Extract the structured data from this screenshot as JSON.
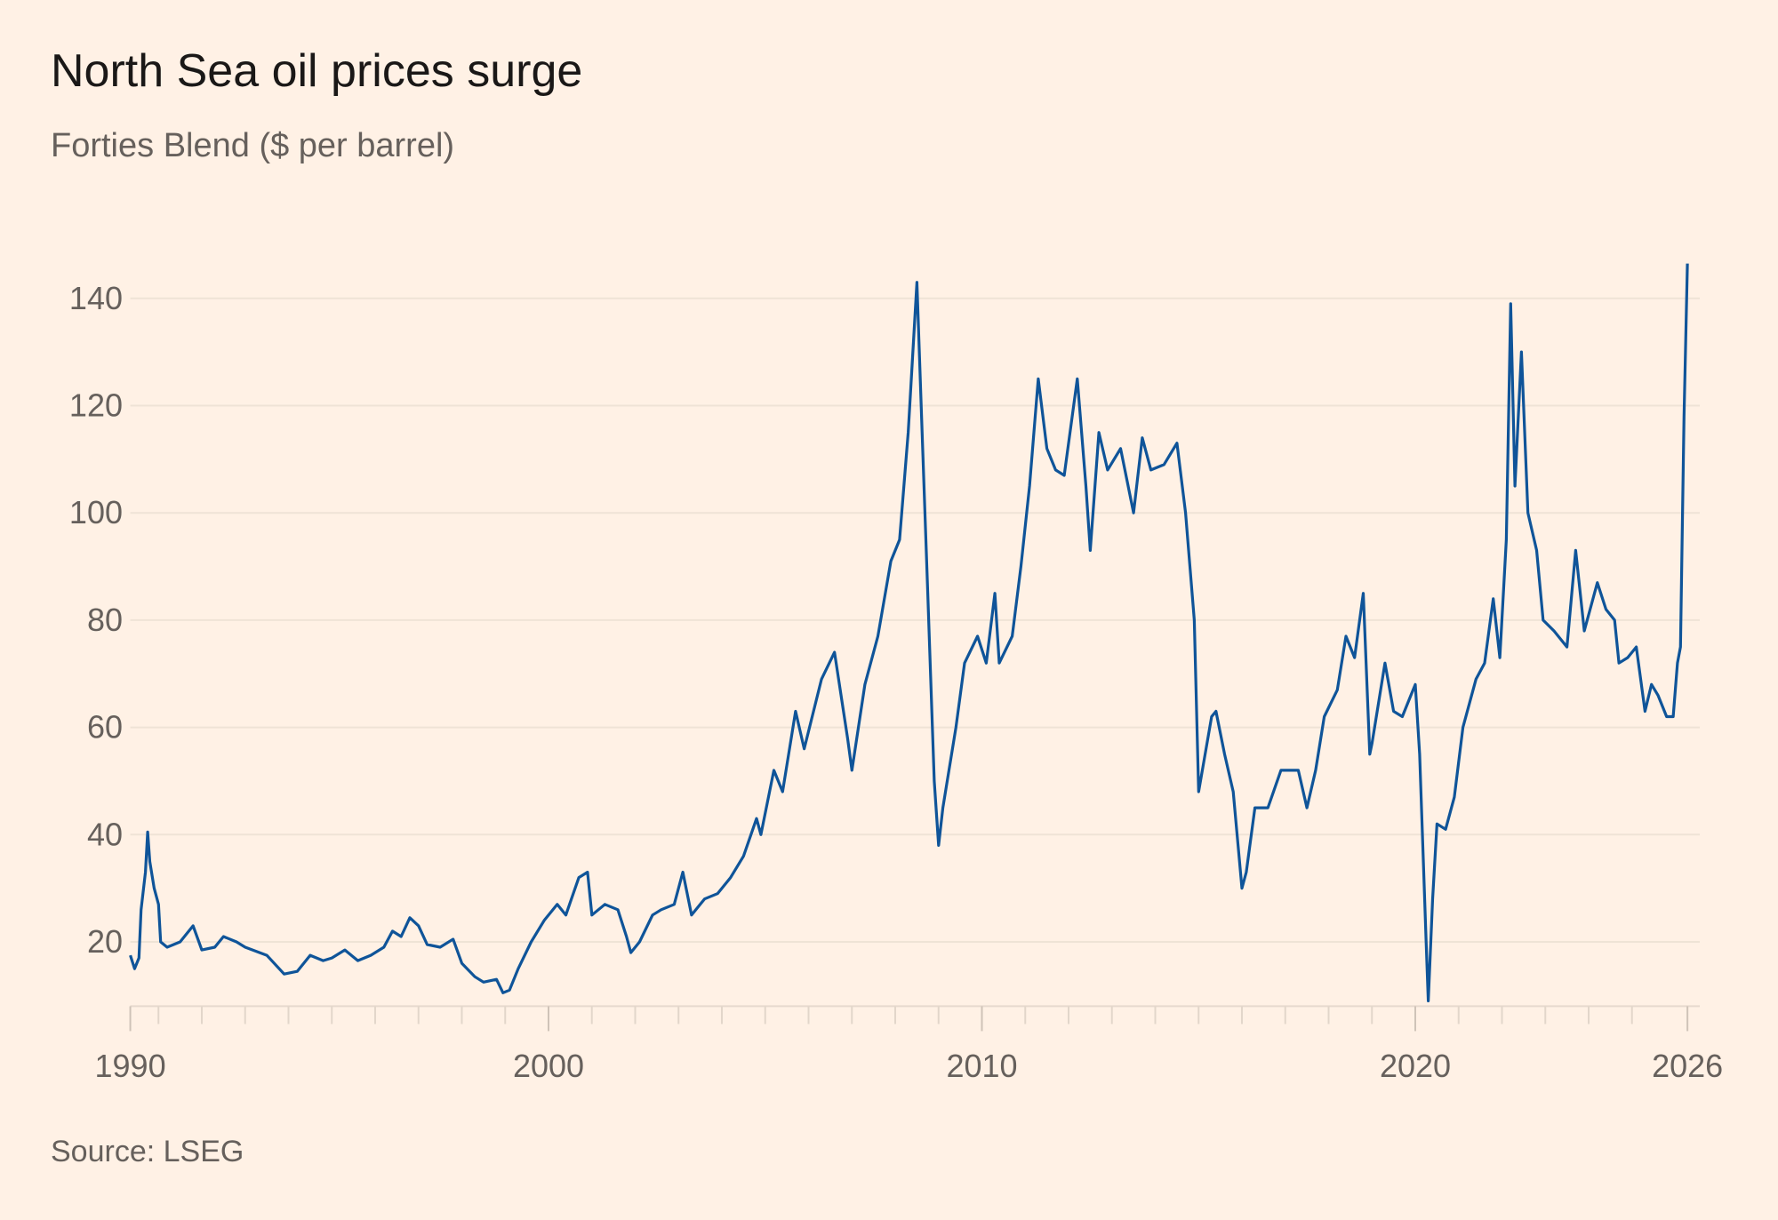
{
  "chart_data": {
    "type": "line",
    "title": "North Sea oil prices surge",
    "subtitle": "Forties Blend ($ per barrel)",
    "source": "Source: LSEG",
    "xlabel": "",
    "ylabel": "",
    "xlim": [
      1990.35,
      2026.28
    ],
    "ylim": [
      8,
      146
    ],
    "yticks": [
      20,
      40,
      60,
      80,
      100,
      120,
      140
    ],
    "xtick_labels": [
      {
        "year": 1990.35,
        "label": "1990"
      },
      {
        "year": 2000,
        "label": "2000"
      },
      {
        "year": 2010,
        "label": "2010"
      },
      {
        "year": 2020,
        "label": "2020"
      },
      {
        "year": 2026.28,
        "label": "2026"
      }
    ],
    "grid": true,
    "line_color": "#0f5499",
    "series": [
      {
        "x": [
          1990.35,
          1990.45,
          1990.55,
          1990.6,
          1990.7,
          1990.75,
          1990.8,
          1990.9,
          1991.0,
          1991.05,
          1991.2,
          1991.5,
          1991.8,
          1992.0,
          1992.3,
          1992.5,
          1992.8,
          1993.0,
          1993.5,
          1993.9,
          1994.2,
          1994.5,
          1994.8,
          1995.0,
          1995.3,
          1995.6,
          1995.9,
          1996.2,
          1996.4,
          1996.6,
          1996.8,
          1997.0,
          1997.2,
          1997.5,
          1997.8,
          1998.0,
          1998.3,
          1998.5,
          1998.8,
          1998.95,
          1999.1,
          1999.3,
          1999.6,
          1999.9,
          2000.2,
          2000.4,
          2000.7,
          2000.9,
          2001.0,
          2001.3,
          2001.6,
          2001.8,
          2001.9,
          2002.1,
          2002.4,
          2002.6,
          2002.9,
          2003.1,
          2003.3,
          2003.6,
          2003.9,
          2004.2,
          2004.5,
          2004.8,
          2004.9,
          2005.2,
          2005.4,
          2005.7,
          2005.9,
          2006.3,
          2006.6,
          2006.9,
          2007.0,
          2007.3,
          2007.6,
          2007.9,
          2008.1,
          2008.3,
          2008.5,
          2008.6,
          2008.75,
          2008.9,
          2009.0,
          2009.1,
          2009.4,
          2009.6,
          2009.9,
          2010.1,
          2010.3,
          2010.4,
          2010.7,
          2010.9,
          2011.1,
          2011.3,
          2011.5,
          2011.7,
          2011.9,
          2012.2,
          2012.4,
          2012.5,
          2012.7,
          2012.9,
          2013.2,
          2013.5,
          2013.7,
          2013.9,
          2014.2,
          2014.5,
          2014.7,
          2014.9,
          2015.0,
          2015.3,
          2015.4,
          2015.6,
          2015.8,
          2016.0,
          2016.1,
          2016.3,
          2016.6,
          2016.9,
          2017.3,
          2017.5,
          2017.7,
          2017.9,
          2018.2,
          2018.4,
          2018.6,
          2018.8,
          2018.95,
          2019.0,
          2019.3,
          2019.5,
          2019.7,
          2019.9,
          2020.0,
          2020.1,
          2020.25,
          2020.3,
          2020.4,
          2020.5,
          2020.7,
          2020.9,
          2021.1,
          2021.4,
          2021.6,
          2021.8,
          2021.95,
          2022.1,
          2022.2,
          2022.3,
          2022.45,
          2022.6,
          2022.8,
          2022.95,
          2023.2,
          2023.5,
          2023.7,
          2023.9,
          2024.2,
          2024.4,
          2024.6,
          2024.7,
          2024.9,
          2025.1,
          2025.3,
          2025.45,
          2025.6,
          2025.8,
          2025.95,
          2026.05,
          2026.12,
          2026.2,
          2026.28
        ],
        "values": [
          17.5,
          15,
          17,
          26,
          33,
          40.5,
          35,
          30,
          27,
          20,
          19,
          20,
          23,
          18.5,
          19,
          21,
          20,
          19,
          17.5,
          14,
          14.5,
          17.5,
          16.5,
          17,
          18.5,
          16.5,
          17.5,
          19,
          22,
          21,
          24.5,
          23,
          19.5,
          19,
          20.5,
          16,
          13.5,
          12.5,
          13,
          10.5,
          11,
          15,
          20,
          24,
          27,
          25,
          32,
          33,
          25,
          27,
          26,
          21,
          18,
          20,
          25,
          26,
          27,
          33,
          25,
          28,
          29,
          32,
          36,
          43,
          40,
          52,
          48,
          63,
          56,
          69,
          74,
          58,
          52,
          68,
          77,
          91,
          95,
          115,
          143,
          120,
          85,
          50,
          38,
          45,
          60,
          72,
          77,
          72,
          85,
          72,
          77,
          90,
          105,
          125,
          112,
          108,
          107,
          125,
          105,
          93,
          115,
          108,
          112,
          100,
          114,
          108,
          109,
          113,
          100,
          80,
          48,
          62,
          63,
          55,
          48,
          30,
          33,
          45,
          45,
          52,
          52,
          45,
          52,
          62,
          67,
          77,
          73,
          85,
          55,
          57,
          72,
          63,
          62,
          66,
          68,
          55,
          20,
          9,
          28,
          42,
          41,
          47,
          60,
          69,
          72,
          84,
          73,
          95,
          139,
          105,
          130,
          100,
          93,
          80,
          78,
          75,
          93,
          78,
          87,
          82,
          80,
          72,
          73,
          75,
          63,
          68,
          66,
          62,
          62,
          72,
          75,
          118,
          146.5
        ]
      }
    ]
  }
}
